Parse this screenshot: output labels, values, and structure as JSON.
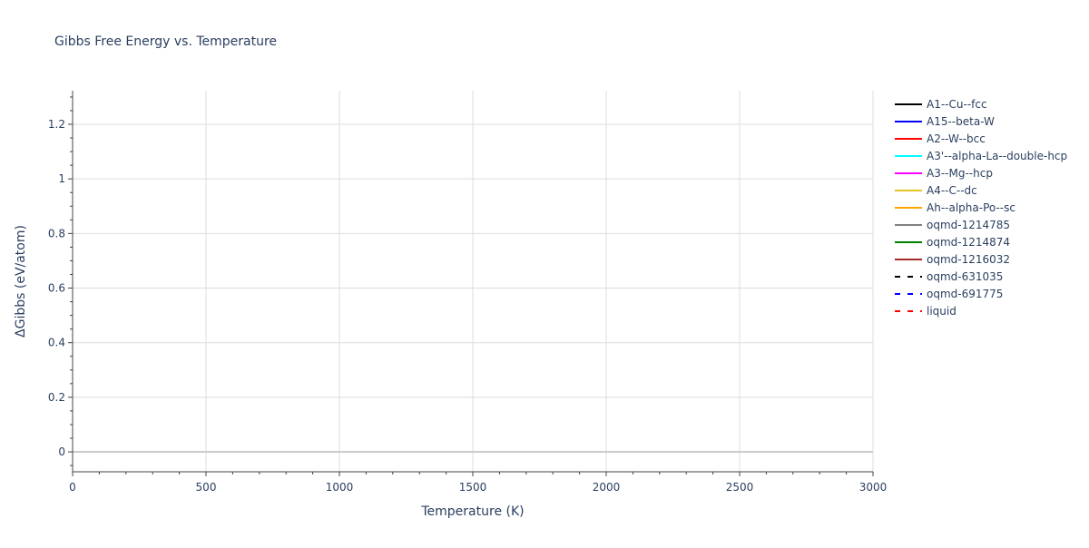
{
  "chart_data": {
    "type": "line",
    "title": "Gibbs Free Energy vs. Temperature",
    "xlabel": "Temperature (K)",
    "ylabel": "ΔGibbs (eV/atom)",
    "xlim": [
      0,
      3000
    ],
    "ylim": [
      -0.073,
      1.323
    ],
    "xticks": [
      0,
      500,
      1000,
      1500,
      2000,
      2500,
      3000
    ],
    "xtick_labels": [
      "0",
      "500",
      "1000",
      "1500",
      "2000",
      "2500",
      "3000"
    ],
    "yticks": [
      0,
      0.2,
      0.4,
      0.6,
      0.8,
      1,
      1.2
    ],
    "ytick_labels": [
      "0",
      "0.2",
      "0.4",
      "0.6",
      "0.8",
      "1",
      "1.2"
    ],
    "grid": true,
    "legend_position": "right",
    "series": [
      {
        "name": "A1--Cu--fcc",
        "color": "#000000",
        "dash": "solid",
        "x": [],
        "y": []
      },
      {
        "name": "A15--beta-W",
        "color": "#0000ff",
        "dash": "solid",
        "x": [],
        "y": []
      },
      {
        "name": "A2--W--bcc",
        "color": "#ff0000",
        "dash": "solid",
        "x": [],
        "y": []
      },
      {
        "name": "A3'--alpha-La--double-hcp",
        "color": "#00ffff",
        "dash": "solid",
        "x": [],
        "y": []
      },
      {
        "name": "A3--Mg--hcp",
        "color": "#ff00ff",
        "dash": "solid",
        "x": [],
        "y": []
      },
      {
        "name": "A4--C--dc",
        "color": "#e6c229",
        "dash": "solid",
        "x": [],
        "y": []
      },
      {
        "name": "Ah--alpha-Po--sc",
        "color": "#ffa500",
        "dash": "solid",
        "x": [],
        "y": []
      },
      {
        "name": "oqmd-1214785",
        "color": "#808080",
        "dash": "solid",
        "x": [],
        "y": []
      },
      {
        "name": "oqmd-1214874",
        "color": "#008000",
        "dash": "solid",
        "x": [],
        "y": []
      },
      {
        "name": "oqmd-1216032",
        "color": "#a52a2a",
        "dash": "solid",
        "x": [],
        "y": []
      },
      {
        "name": "oqmd-631035",
        "color": "#000000",
        "dash": "dash",
        "x": [],
        "y": []
      },
      {
        "name": "oqmd-691775",
        "color": "#0000ff",
        "dash": "dash",
        "x": [],
        "y": []
      },
      {
        "name": "liquid",
        "color": "#ff0000",
        "dash": "dash",
        "x": [],
        "y": []
      }
    ]
  }
}
